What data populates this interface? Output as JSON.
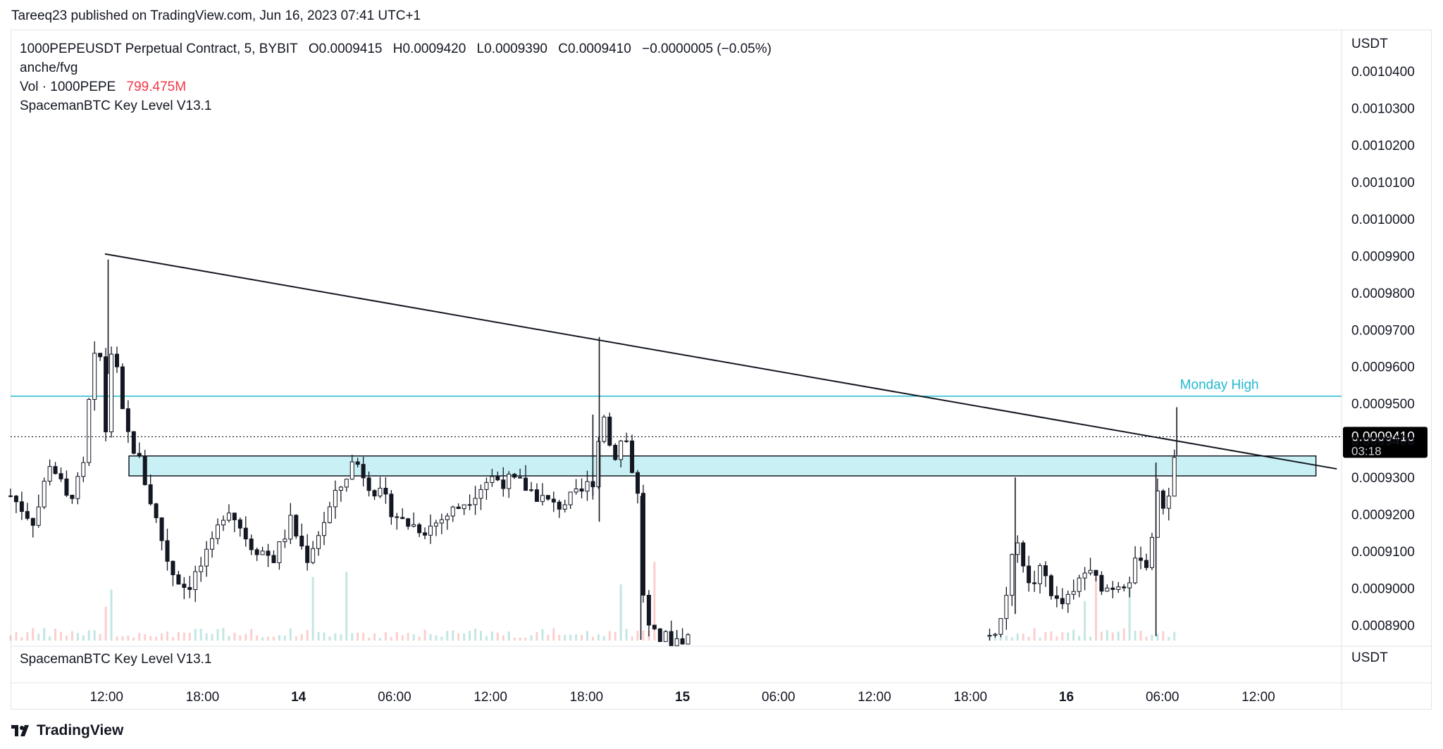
{
  "publisher": "Tareeq23 published on TradingView.com, Jun 16, 2023 07:41 UTC+1",
  "legend": {
    "symbol": "1000PEPEUSDT Perpetual Contract, 5, BYBIT",
    "open": "O0.0009415",
    "high": "H0.0009420",
    "low": "L0.0009390",
    "close": "C0.0009410",
    "change": "−0.0000005 (−0.05%)",
    "indicator1": "anche/fvg",
    "vol_label": "Vol · 1000PEPE",
    "vol_value": "799.475M",
    "indicator2": "SpacemanBTC Key Level V13.1"
  },
  "pane2_label": "SpacemanBTC Key Level V13.1",
  "price_scale_currency": "USDT",
  "pane2_currency": "USDT",
  "current_price": "0.0009410",
  "countdown": "03:18",
  "brand": "TradingView",
  "colors": {
    "up": "#26a69a",
    "down": "#ef5350",
    "monday_high": "#22b8cf",
    "zone_fill": "#c9f0f4",
    "price_tag": "#000000"
  },
  "chart_data": {
    "type": "candlestick",
    "interval": "5",
    "y_ticks": [
      "0.0010400",
      "0.0010300",
      "0.0010200",
      "0.0010100",
      "0.0010000",
      "0.0009900",
      "0.0009800",
      "0.0009700",
      "0.0009600",
      "0.0009500",
      "0.0009400",
      "0.0009300",
      "0.0009200",
      "0.0009100",
      "0.0009000",
      "0.0008900"
    ],
    "ylim": [
      0.000886,
      0.0010445
    ],
    "x_ticks": [
      {
        "label": "12:00",
        "hour": 12,
        "bold": false
      },
      {
        "label": "18:00",
        "hour": 18,
        "bold": false
      },
      {
        "label": "14",
        "hour": 24,
        "bold": true
      },
      {
        "label": "06:00",
        "hour": 30,
        "bold": false
      },
      {
        "label": "12:00",
        "hour": 36,
        "bold": false
      },
      {
        "label": "18:00",
        "hour": 42,
        "bold": false
      },
      {
        "label": "15",
        "hour": 48,
        "bold": true
      },
      {
        "label": "06:00",
        "hour": 54,
        "bold": false
      },
      {
        "label": "12:00",
        "hour": 60,
        "bold": false
      },
      {
        "label": "18:00",
        "hour": 66,
        "bold": false
      },
      {
        "label": "16",
        "hour": 72,
        "bold": true
      },
      {
        "label": "06:00",
        "hour": 78,
        "bold": false
      },
      {
        "label": "12:00",
        "hour": 84,
        "bold": false
      }
    ],
    "monday_high": {
      "label": "Monday High",
      "price": 0.000952
    },
    "zone": {
      "top": 0.0009358,
      "bottom": 0.0009304
    },
    "trendline": [
      {
        "hour": 11.9,
        "price": 0.0009905
      },
      {
        "hour": 88.9,
        "price": 0.0009323
      }
    ],
    "path": [
      {
        "h": 6.0,
        "p": 0.000925
      },
      {
        "h": 7.5,
        "p": 0.000918
      },
      {
        "h": 8.5,
        "p": 0.000935
      },
      {
        "h": 9.5,
        "p": 0.000924
      },
      {
        "h": 10.5,
        "p": 0.00093
      },
      {
        "h": 11.0,
        "p": 0.000955
      },
      {
        "h": 11.5,
        "p": 0.000968
      },
      {
        "h": 12.0,
        "p": 0.00094
      },
      {
        "h": 12.4,
        "p": 0.000972
      },
      {
        "h": 12.8,
        "p": 0.00095
      },
      {
        "h": 13.3,
        "p": 0.000942
      },
      {
        "h": 14.0,
        "p": 0.000935
      },
      {
        "h": 15.0,
        "p": 0.00092
      },
      {
        "h": 16.0,
        "p": 0.000905
      },
      {
        "h": 17.0,
        "p": 0.0009
      },
      {
        "h": 18.5,
        "p": 0.00091
      },
      {
        "h": 19.5,
        "p": 0.000923
      },
      {
        "h": 21.0,
        "p": 0.000912
      },
      {
        "h": 22.5,
        "p": 0.000908
      },
      {
        "h": 23.5,
        "p": 0.000918
      },
      {
        "h": 24.5,
        "p": 0.000908
      },
      {
        "h": 26.0,
        "p": 0.000922
      },
      {
        "h": 27.5,
        "p": 0.000935
      },
      {
        "h": 28.5,
        "p": 0.000928
      },
      {
        "h": 30.5,
        "p": 0.000918
      },
      {
        "h": 32.0,
        "p": 0.000916
      },
      {
        "h": 34.0,
        "p": 0.000922
      },
      {
        "h": 36.0,
        "p": 0.00093
      },
      {
        "h": 38.0,
        "p": 0.000928
      },
      {
        "h": 40.0,
        "p": 0.000922
      },
      {
        "h": 41.5,
        "p": 0.000925
      },
      {
        "h": 42.5,
        "p": 0.00093
      },
      {
        "h": 43.0,
        "p": 0.00095
      },
      {
        "h": 43.6,
        "p": 0.000935
      },
      {
        "h": 44.4,
        "p": 0.000942
      },
      {
        "h": 45.2,
        "p": 0.000925
      },
      {
        "h": 45.6,
        "p": 0.000895
      },
      {
        "h": 46.0,
        "p": 0.000887
      },
      {
        "h": 47.5,
        "p": 0.000886
      },
      {
        "h": 48.5,
        "p": 0.000887
      }
    ],
    "path2": [
      {
        "h": 67.2,
        "p": 0.000887
      },
      {
        "h": 68.0,
        "p": 0.000892
      },
      {
        "h": 68.5,
        "p": 0.000905
      },
      {
        "h": 69.0,
        "p": 0.000915
      },
      {
        "h": 69.6,
        "p": 0.0009
      },
      {
        "h": 70.5,
        "p": 0.000905
      },
      {
        "h": 71.5,
        "p": 0.000895
      },
      {
        "h": 72.5,
        "p": 0.000898
      },
      {
        "h": 73.0,
        "p": 0.000905
      },
      {
        "h": 74.5,
        "p": 0.0009
      },
      {
        "h": 76.0,
        "p": 0.000903
      },
      {
        "h": 76.7,
        "p": 0.00091
      },
      {
        "h": 77.1,
        "p": 0.000905
      },
      {
        "h": 77.6,
        "p": 0.000925
      },
      {
        "h": 78.2,
        "p": 0.000922
      },
      {
        "h": 78.8,
        "p": 0.000935
      },
      {
        "h": 79.0,
        "p": 0.000941
      }
    ],
    "spikes": [
      {
        "h": 12.1,
        "high": 0.000989,
        "low": 0.000958
      },
      {
        "h": 42.4,
        "high": 0.000947,
        "low": 0.000925
      },
      {
        "h": 42.8,
        "high": 0.000968,
        "low": 0.000918
      },
      {
        "h": 45.4,
        "high": 0.000925,
        "low": 0.000886
      },
      {
        "h": 68.8,
        "high": 0.00093,
        "low": 0.000893
      },
      {
        "h": 77.6,
        "high": 0.000934,
        "low": 0.000887
      },
      {
        "h": 78.9,
        "high": 0.000949,
        "low": 0.000936
      }
    ]
  }
}
